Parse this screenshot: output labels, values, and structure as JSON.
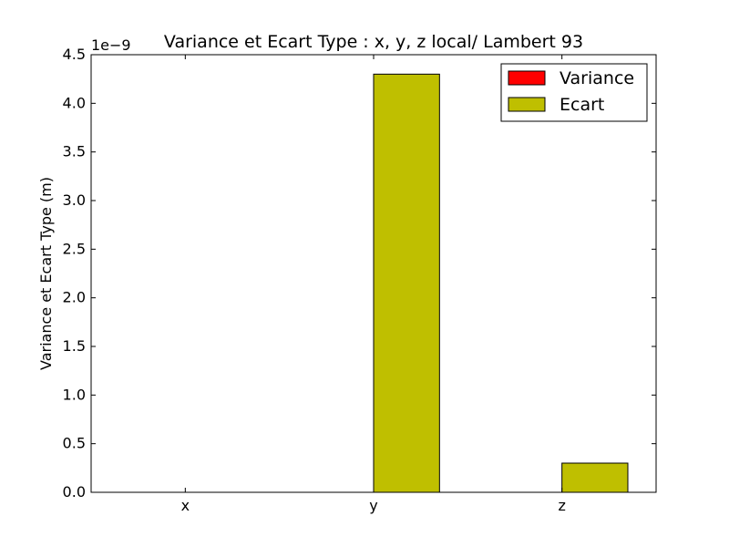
{
  "chart_data": {
    "type": "bar",
    "title": "Variance et Ecart Type : x, y, z local/ Lambert 93",
    "xlabel": "",
    "ylabel": "Variance et Ecart Type (m)",
    "y_offset_label": "1e−9",
    "categories": [
      "x",
      "y",
      "z"
    ],
    "ylim": [
      0,
      4.5e-09
    ],
    "y_ticks": [
      0.0,
      5e-10,
      1e-09,
      1.5e-09,
      2e-09,
      2.5e-09,
      3e-09,
      3.5e-09,
      4e-09,
      4.5e-09
    ],
    "y_tick_labels": [
      "0.0",
      "0.5",
      "1.0",
      "1.5",
      "2.0",
      "2.5",
      "3.0",
      "3.5",
      "4.0",
      "4.5"
    ],
    "series": [
      {
        "name": "Variance",
        "color": "#ff0000",
        "values": [
          0,
          0,
          0
        ]
      },
      {
        "name": "Ecart",
        "color": "#bfbf00",
        "values": [
          0,
          4.3e-09,
          3e-10
        ]
      }
    ],
    "legend": {
      "position": "top-right"
    },
    "grid": false
  }
}
